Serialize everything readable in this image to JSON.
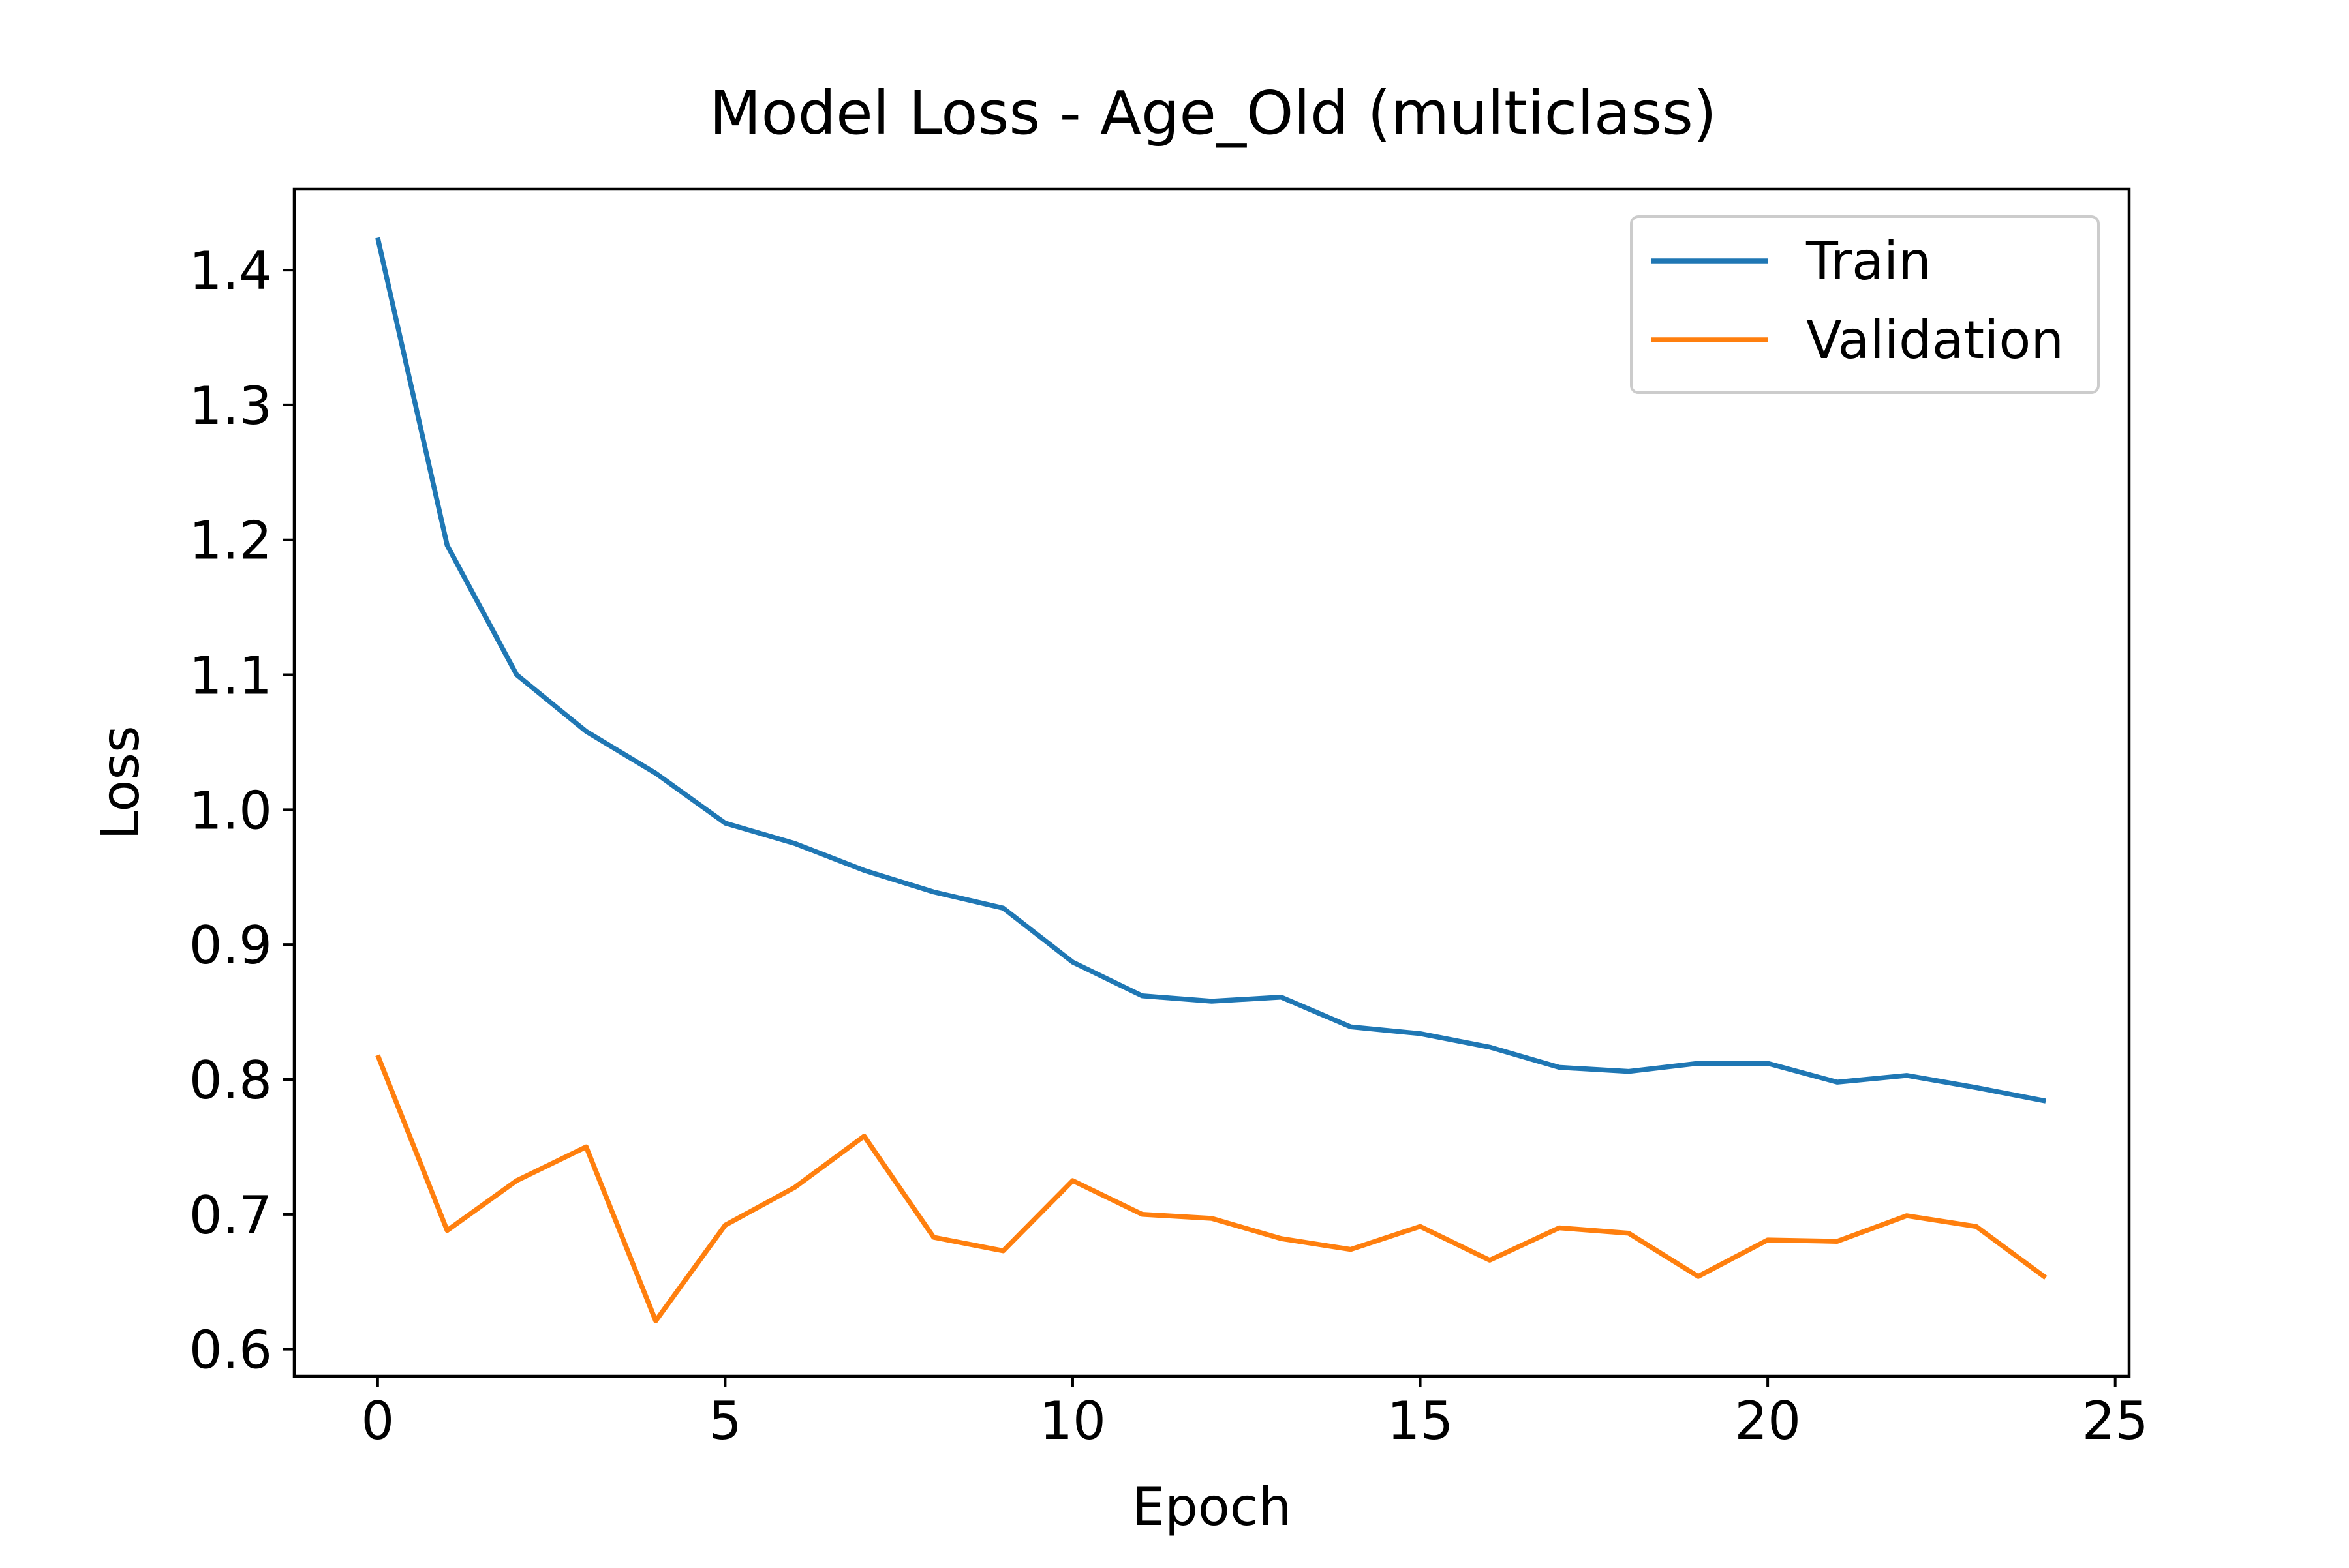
{
  "chart_data": {
    "type": "line",
    "title": "Model Loss - Age_Old (multiclass)",
    "xlabel": "Epoch",
    "ylabel": "Loss",
    "xlim": [
      -1.2,
      25.2
    ],
    "ylim": [
      0.58,
      1.46
    ],
    "xticks": [
      0,
      5,
      10,
      15,
      20,
      25
    ],
    "yticks": [
      0.6,
      0.7,
      0.8,
      0.9,
      1.0,
      1.1,
      1.2,
      1.3,
      1.4
    ],
    "ytick_labels": [
      "0.6",
      "0.7",
      "0.8",
      "0.9",
      "1.0",
      "1.1",
      "1.2",
      "1.3",
      "1.4"
    ],
    "grid": false,
    "legend_position": "top-right",
    "x": [
      0,
      1,
      2,
      3,
      4,
      5,
      6,
      7,
      8,
      9,
      10,
      11,
      12,
      13,
      14,
      15,
      16,
      17,
      18,
      19,
      20,
      21,
      22,
      23,
      24
    ],
    "series": [
      {
        "name": "Train",
        "color": "#1f77b4",
        "values": [
          1.424,
          1.196,
          1.1,
          1.058,
          1.027,
          0.99,
          0.975,
          0.955,
          0.939,
          0.927,
          0.887,
          0.862,
          0.858,
          0.861,
          0.839,
          0.834,
          0.824,
          0.809,
          0.806,
          0.812,
          0.812,
          0.798,
          0.803,
          0.794,
          0.784
        ]
      },
      {
        "name": "Validation",
        "color": "#ff7f0e",
        "values": [
          0.818,
          0.688,
          0.725,
          0.75,
          0.621,
          0.692,
          0.72,
          0.758,
          0.683,
          0.673,
          0.725,
          0.7,
          0.697,
          0.682,
          0.674,
          0.691,
          0.666,
          0.69,
          0.686,
          0.654,
          0.681,
          0.68,
          0.699,
          0.691,
          0.653
        ]
      }
    ]
  }
}
